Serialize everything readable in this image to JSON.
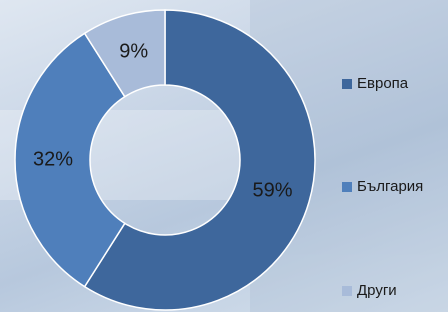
{
  "chart_data": {
    "type": "donut",
    "categories": [
      "Европа",
      "България",
      "Други"
    ],
    "values": [
      59,
      32,
      9
    ],
    "value_labels": [
      "59%",
      "32%",
      "9%"
    ],
    "colors": [
      "#3e679c",
      "#4f7fbb",
      "#a8bbd9"
    ],
    "legend": "right"
  }
}
